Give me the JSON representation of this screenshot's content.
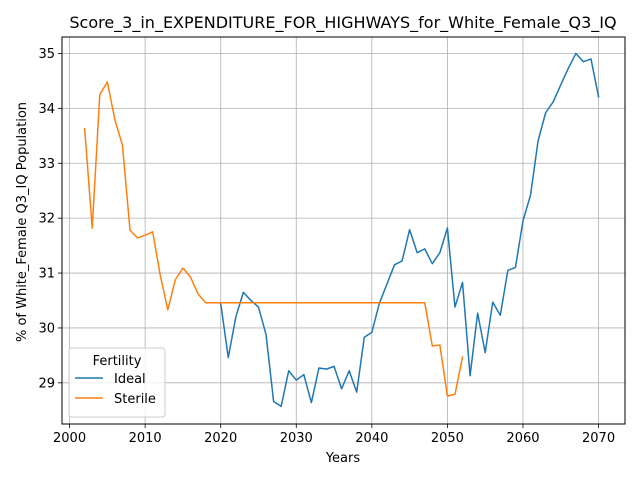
{
  "chart_data": {
    "type": "line",
    "title": "Score_3_in_EXPENDITURE_FOR_HIGHWAYS_for_White_Female_Q3_IQ",
    "xlabel": "Years",
    "ylabel": "% of White_Female Q3_IQ Population",
    "xlim": [
      1999,
      2073.5
    ],
    "ylim": [
      28.25,
      35.3
    ],
    "xticks": [
      2000,
      2010,
      2020,
      2030,
      2040,
      2050,
      2060,
      2070
    ],
    "yticks": [
      29,
      30,
      31,
      32,
      33,
      34,
      35
    ],
    "grid": true,
    "legend": {
      "title": "Fertility",
      "placement": "lower-left"
    },
    "series": [
      {
        "name": "Ideal",
        "color": "#1f77b4",
        "x": [
          2020,
          2021,
          2022,
          2023,
          2024,
          2025,
          2026,
          2027,
          2028,
          2029,
          2030,
          2031,
          2032,
          2033,
          2034,
          2035,
          2036,
          2037,
          2038,
          2039,
          2040,
          2041,
          2042,
          2043,
          2044,
          2045,
          2046,
          2047,
          2048,
          2049,
          2050,
          2051,
          2052,
          2053,
          2054,
          2055,
          2056,
          2057,
          2058,
          2059,
          2060,
          2061,
          2062,
          2063,
          2064,
          2065,
          2066,
          2067,
          2068,
          2069,
          2070
        ],
        "y": [
          30.45,
          29.46,
          30.2,
          30.65,
          30.5,
          30.38,
          29.88,
          28.66,
          28.57,
          29.22,
          29.05,
          29.15,
          28.64,
          29.27,
          29.25,
          29.3,
          28.89,
          29.22,
          28.83,
          29.83,
          29.92,
          30.45,
          30.8,
          31.15,
          31.22,
          31.79,
          31.37,
          31.44,
          31.17,
          31.37,
          31.82,
          30.38,
          30.83,
          29.13,
          30.27,
          29.55,
          30.47,
          30.23,
          31.05,
          31.1,
          31.95,
          32.42,
          33.41,
          33.92,
          34.12,
          34.43,
          34.73,
          35.0,
          34.85,
          34.9,
          34.21
        ]
      },
      {
        "name": "Sterile",
        "color": "#ff7f0e",
        "x": [
          2002,
          2003,
          2004,
          2005,
          2006,
          2007,
          2008,
          2009,
          2010,
          2011,
          2012,
          2013,
          2014,
          2015,
          2016,
          2017,
          2018,
          2019,
          2020,
          2021,
          2022,
          2023,
          2024,
          2025,
          2026,
          2027,
          2028,
          2029,
          2030,
          2031,
          2032,
          2033,
          2034,
          2035,
          2036,
          2037,
          2038,
          2039,
          2040,
          2041,
          2042,
          2043,
          2044,
          2045,
          2046,
          2047,
          2048,
          2049,
          2050,
          2051,
          2052
        ],
        "y": [
          33.63,
          31.82,
          34.25,
          34.48,
          33.79,
          33.33,
          31.78,
          31.64,
          31.69,
          31.75,
          30.96,
          30.33,
          30.88,
          31.09,
          30.93,
          30.62,
          30.46,
          30.46,
          30.46,
          30.46,
          30.46,
          30.46,
          30.46,
          30.46,
          30.46,
          30.46,
          30.46,
          30.46,
          30.46,
          30.46,
          30.46,
          30.46,
          30.46,
          30.46,
          30.46,
          30.46,
          30.46,
          30.46,
          30.46,
          30.46,
          30.46,
          30.46,
          30.46,
          30.46,
          30.46,
          30.46,
          29.67,
          29.69,
          28.76,
          28.79,
          29.47
        ]
      }
    ]
  }
}
